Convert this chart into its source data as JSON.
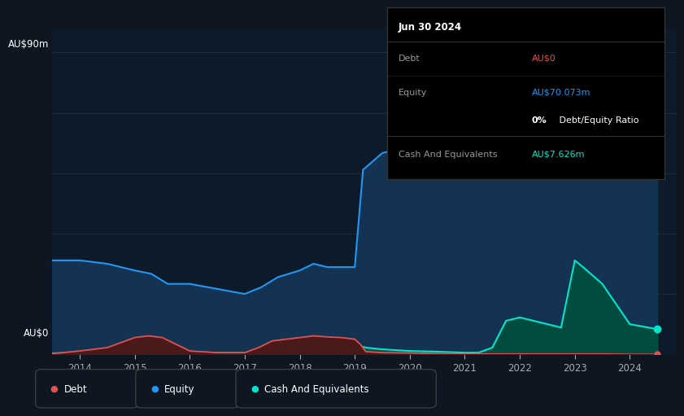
{
  "bg_color": "#0e1621",
  "chart_bg": "#0d1a2a",
  "grid_color": "#1e2d3d",
  "y_label_top": "AU$90m",
  "y_label_bottom": "AU$0",
  "x_ticks": [
    "2014",
    "2015",
    "2016",
    "2017",
    "2018",
    "2019",
    "2020",
    "2021",
    "2022",
    "2023",
    "2024"
  ],
  "equity_color": "#2196f3",
  "equity_fill": "#143352",
  "debt_color": "#e05252",
  "debt_fill": "#4a1a1a",
  "cash_color": "#00e5cc",
  "cash_fill": "#004d40",
  "tooltip_bg": "#000000",
  "tooltip_border": "#333333",
  "tooltip_date": "Jun 30 2024",
  "tooltip_debt_label": "Debt",
  "tooltip_debt_value": "AU$0",
  "tooltip_debt_color": "#e05252",
  "tooltip_equity_label": "Equity",
  "tooltip_equity_value": "AU$70.073m",
  "tooltip_equity_color": "#2196f3",
  "tooltip_ratio": "0%",
  "tooltip_ratio_suffix": " Debt/Equity Ratio",
  "tooltip_cash_label": "Cash And Equivalents",
  "tooltip_cash_value": "AU$7.626m",
  "tooltip_cash_color": "#00e5cc",
  "legend_label_color": "#cccccc",
  "equity_data": [
    [
      2013.5,
      28
    ],
    [
      2014.0,
      28
    ],
    [
      2014.5,
      27
    ],
    [
      2015.0,
      25
    ],
    [
      2015.3,
      24
    ],
    [
      2015.6,
      21
    ],
    [
      2016.0,
      21
    ],
    [
      2016.5,
      19.5
    ],
    [
      2017.0,
      18
    ],
    [
      2017.3,
      20
    ],
    [
      2017.6,
      23
    ],
    [
      2018.0,
      25
    ],
    [
      2018.25,
      27
    ],
    [
      2018.5,
      26
    ],
    [
      2019.0,
      26
    ],
    [
      2019.15,
      55
    ],
    [
      2019.5,
      60
    ],
    [
      2020.0,
      62
    ],
    [
      2020.25,
      63
    ],
    [
      2020.5,
      62
    ],
    [
      2021.0,
      62
    ],
    [
      2021.5,
      62
    ],
    [
      2021.75,
      70
    ],
    [
      2022.0,
      73
    ],
    [
      2022.25,
      70
    ],
    [
      2022.5,
      67
    ],
    [
      2022.75,
      65
    ],
    [
      2023.0,
      88
    ],
    [
      2023.15,
      82
    ],
    [
      2023.5,
      74
    ],
    [
      2023.75,
      70
    ],
    [
      2024.0,
      70
    ],
    [
      2024.5,
      70
    ]
  ],
  "debt_data": [
    [
      2013.5,
      0.2
    ],
    [
      2014.0,
      1
    ],
    [
      2014.5,
      2
    ],
    [
      2015.0,
      5
    ],
    [
      2015.25,
      5.5
    ],
    [
      2015.5,
      5
    ],
    [
      2015.75,
      3
    ],
    [
      2016.0,
      1
    ],
    [
      2016.5,
      0.5
    ],
    [
      2017.0,
      0.5
    ],
    [
      2017.25,
      2
    ],
    [
      2017.5,
      4
    ],
    [
      2018.0,
      5
    ],
    [
      2018.25,
      5.5
    ],
    [
      2018.5,
      5.2
    ],
    [
      2018.75,
      5
    ],
    [
      2019.0,
      4.5
    ],
    [
      2019.1,
      3
    ],
    [
      2019.2,
      0.8
    ],
    [
      2019.5,
      0.5
    ],
    [
      2020.0,
      0.4
    ],
    [
      2020.5,
      0.2
    ],
    [
      2021.0,
      0.1
    ],
    [
      2021.5,
      0.1
    ],
    [
      2022.0,
      0.1
    ],
    [
      2022.5,
      0.1
    ],
    [
      2023.0,
      0.1
    ],
    [
      2023.5,
      0.1
    ],
    [
      2024.0,
      0
    ],
    [
      2024.5,
      0
    ]
  ],
  "cash_data": [
    [
      2013.5,
      0.3
    ],
    [
      2014.0,
      0.5
    ],
    [
      2014.5,
      0.8
    ],
    [
      2015.0,
      1.2
    ],
    [
      2015.25,
      1.5
    ],
    [
      2015.5,
      1.0
    ],
    [
      2016.0,
      0.6
    ],
    [
      2016.5,
      0.4
    ],
    [
      2017.0,
      0.4
    ],
    [
      2017.25,
      0.8
    ],
    [
      2017.5,
      1.5
    ],
    [
      2018.0,
      2.5
    ],
    [
      2018.25,
      2.8
    ],
    [
      2018.5,
      3.0
    ],
    [
      2018.75,
      3.0
    ],
    [
      2019.0,
      2.8
    ],
    [
      2019.1,
      2.5
    ],
    [
      2019.2,
      2.0
    ],
    [
      2019.5,
      1.5
    ],
    [
      2020.0,
      1.0
    ],
    [
      2020.5,
      0.8
    ],
    [
      2021.0,
      0.5
    ],
    [
      2021.25,
      0.5
    ],
    [
      2021.5,
      2
    ],
    [
      2021.75,
      10
    ],
    [
      2022.0,
      11
    ],
    [
      2022.25,
      10
    ],
    [
      2022.5,
      9
    ],
    [
      2022.75,
      8
    ],
    [
      2023.0,
      28
    ],
    [
      2023.15,
      26
    ],
    [
      2023.5,
      21
    ],
    [
      2023.75,
      15
    ],
    [
      2024.0,
      9
    ],
    [
      2024.5,
      7.5
    ]
  ],
  "ylim": [
    0,
    97
  ],
  "xlim": [
    2013.5,
    2024.85
  ],
  "figsize": [
    8.21,
    5.26
  ],
  "dpi": 100
}
